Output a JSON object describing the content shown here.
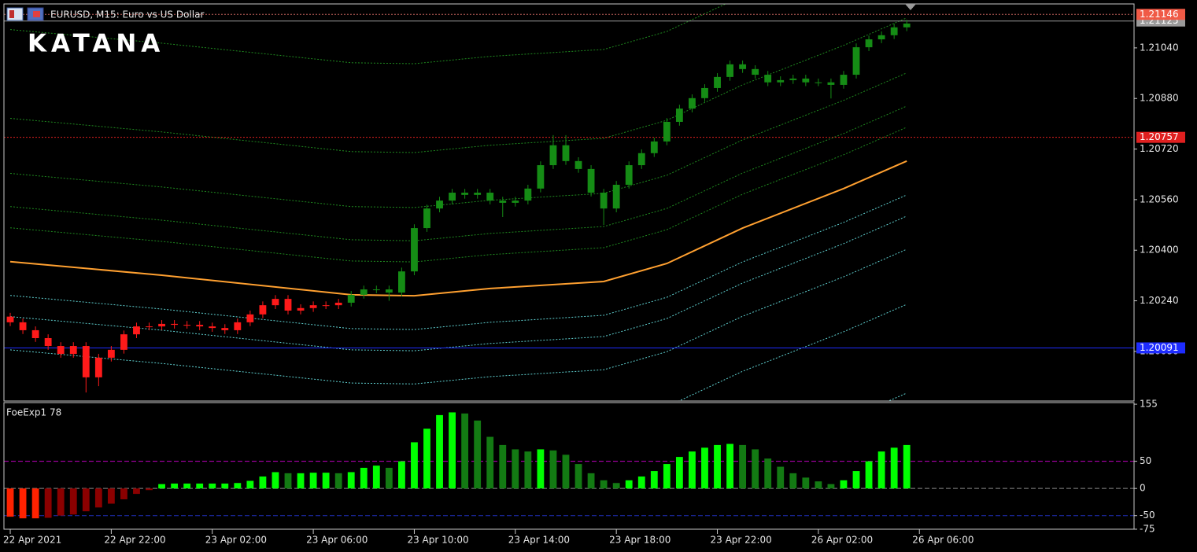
{
  "window": {
    "title": "EURUSD, M15:  Euro vs US Dollar",
    "watermark": "KATANA"
  },
  "chart_data": [
    {
      "type": "candlestick",
      "open": [
        1.2019,
        1.20172,
        1.20147,
        1.20122,
        1.20097,
        1.20072,
        1.20097,
        1.19998,
        1.2006,
        1.20085,
        1.20134,
        1.20159,
        1.20159,
        1.20167,
        1.20164,
        1.20164,
        1.20159,
        1.20154,
        1.20147,
        1.20172,
        1.20197,
        1.20226,
        1.20246,
        1.20209,
        1.20217,
        1.20226,
        1.20226,
        1.20234,
        1.20259,
        1.20276,
        1.20276,
        1.20266,
        1.20333,
        1.2047,
        1.20532,
        1.20557,
        1.20582,
        1.20575,
        1.20582,
        1.20557,
        1.2055,
        1.20557,
        1.20595,
        1.20669,
        1.20732,
        1.20682,
        1.20657,
        1.20582,
        1.20532,
        1.20607,
        1.20669,
        1.20707,
        1.20744,
        1.20806,
        1.20848,
        1.20881,
        1.20913,
        1.20948,
        1.20988,
        1.20973,
        1.20955,
        1.20931,
        1.20938,
        1.20943,
        1.20931,
        1.20931,
        1.20923,
        1.20955,
        1.21042,
        1.21067,
        1.2108,
        1.21105
      ],
      "high": [
        1.20202,
        1.20184,
        1.20159,
        1.20134,
        1.20109,
        1.20109,
        1.20109,
        1.20072,
        1.20097,
        1.20146,
        1.20171,
        1.20171,
        1.20179,
        1.20179,
        1.20176,
        1.20176,
        1.20171,
        1.20166,
        1.20184,
        1.20209,
        1.20238,
        1.20258,
        1.20258,
        1.20229,
        1.20238,
        1.20238,
        1.20246,
        1.20271,
        1.20288,
        1.20288,
        1.20288,
        1.20345,
        1.20482,
        1.20544,
        1.20569,
        1.20594,
        1.20594,
        1.20594,
        1.20594,
        1.20569,
        1.20569,
        1.20607,
        1.20681,
        1.20764,
        1.20764,
        1.20694,
        1.20669,
        1.20594,
        1.20619,
        1.20681,
        1.20719,
        1.20756,
        1.20818,
        1.2086,
        1.20893,
        1.20925,
        1.2096,
        1.21,
        1.21,
        1.20985,
        1.20967,
        1.2095,
        1.20955,
        1.20955,
        1.20943,
        1.20943,
        1.20967,
        1.21054,
        1.21079,
        1.21092,
        1.21117,
        1.21129
      ],
      "low": [
        1.2016,
        1.20135,
        1.2011,
        1.20085,
        1.2006,
        1.2006,
        1.1995,
        1.1997,
        1.20048,
        1.20073,
        1.20122,
        1.20147,
        1.20147,
        1.20152,
        1.20152,
        1.20147,
        1.20142,
        1.20135,
        1.20135,
        1.2016,
        1.20185,
        1.20214,
        1.20197,
        1.20197,
        1.20205,
        1.20214,
        1.20214,
        1.20222,
        1.20247,
        1.20264,
        1.2024,
        1.20254,
        1.20321,
        1.20458,
        1.2052,
        1.20545,
        1.20563,
        1.20563,
        1.20545,
        1.20505,
        1.20538,
        1.20545,
        1.20583,
        1.20657,
        1.2067,
        1.20645,
        1.2057,
        1.2048,
        1.2052,
        1.20595,
        1.20657,
        1.20695,
        1.20732,
        1.20794,
        1.20836,
        1.20869,
        1.20901,
        1.20936,
        1.20961,
        1.20943,
        1.20919,
        1.20919,
        1.20926,
        1.20919,
        1.20919,
        1.2088,
        1.20911,
        1.20943,
        1.2103,
        1.21055,
        1.21068,
        1.21093
      ],
      "close": [
        1.20172,
        1.20147,
        1.20122,
        1.20097,
        1.20072,
        1.20097,
        1.19998,
        1.2006,
        1.20085,
        1.20134,
        1.20159,
        1.20159,
        1.20167,
        1.20164,
        1.20164,
        1.20159,
        1.20154,
        1.20147,
        1.20172,
        1.20197,
        1.20226,
        1.20246,
        1.20209,
        1.20217,
        1.20226,
        1.20226,
        1.20234,
        1.20259,
        1.20276,
        1.20276,
        1.20266,
        1.20333,
        1.2047,
        1.20532,
        1.20557,
        1.20582,
        1.20575,
        1.20582,
        1.20557,
        1.2055,
        1.20557,
        1.20595,
        1.20669,
        1.20732,
        1.20682,
        1.20657,
        1.20582,
        1.20532,
        1.20607,
        1.20669,
        1.20707,
        1.20744,
        1.20806,
        1.20848,
        1.20881,
        1.20913,
        1.20948,
        1.20988,
        1.20973,
        1.20955,
        1.20931,
        1.20938,
        1.20943,
        1.20931,
        1.20931,
        1.20923,
        1.20955,
        1.21042,
        1.21067,
        1.2108,
        1.21105,
        1.21117
      ],
      "candle_colors": [
        "#ff1a1a",
        "#ff1a1a",
        "#ff1a1a",
        "#ff1a1a",
        "#ff1a1a",
        "#ff1a1a",
        "#ff1a1a",
        "#ff1a1a",
        "#ff1a1a",
        "#ff1a1a",
        "#ff1a1a",
        "#ff1a1a",
        "#ff1a1a",
        "#ff1a1a",
        "#ff1a1a",
        "#ff1a1a",
        "#ff1a1a",
        "#ff1a1a",
        "#ff1a1a",
        "#ff1a1a",
        "#ff1a1a",
        "#ff1a1a",
        "#ff1a1a",
        "#ff1a1a",
        "#ff1a1a",
        "#ff1a1a",
        "#ff1a1a",
        "#158c15",
        "#158c15",
        "#158c15",
        "#158c15",
        "#158c15",
        "#158c15",
        "#158c15",
        "#158c15",
        "#158c15",
        "#158c15",
        "#158c15",
        "#158c15",
        "#158c15",
        "#158c15",
        "#158c15",
        "#158c15",
        "#158c15",
        "#158c15",
        "#158c15",
        "#158c15",
        "#158c15",
        "#158c15",
        "#158c15",
        "#158c15",
        "#158c15",
        "#158c15",
        "#158c15",
        "#158c15",
        "#158c15",
        "#158c15",
        "#158c15",
        "#158c15",
        "#158c15",
        "#158c15",
        "#158c15",
        "#158c15",
        "#158c15",
        "#158c15",
        "#158c15",
        "#158c15",
        "#158c15",
        "#158c15",
        "#158c15",
        "#158c15",
        "#158c15"
      ],
      "xlim": [
        -0.5,
        89
      ],
      "xticks": [
        {
          "value": 0,
          "label": "22 Apr 2021"
        },
        {
          "value": 8,
          "label": "22 Apr 22:00"
        },
        {
          "value": 16,
          "label": "23 Apr 02:00"
        },
        {
          "value": 24,
          "label": "23 Apr 06:00"
        },
        {
          "value": 32,
          "label": "23 Apr 10:00"
        },
        {
          "value": 40,
          "label": "23 Apr 14:00"
        },
        {
          "value": 48,
          "label": "23 Apr 18:00"
        },
        {
          "value": 56,
          "label": "23 Apr 22:00"
        },
        {
          "value": 64,
          "label": "26 Apr 02:00"
        },
        {
          "value": 72,
          "label": "26 Apr 06:00"
        }
      ],
      "ylim": [
        1.19923,
        1.21179
      ],
      "yticks": [
        {
          "value": 1.2008,
          "label": "1.20080"
        },
        {
          "value": 1.2024,
          "label": "1.20240"
        },
        {
          "value": 1.204,
          "label": "1.20400"
        },
        {
          "value": 1.2056,
          "label": "1.20560"
        },
        {
          "value": 1.2072,
          "label": "1.20720"
        },
        {
          "value": 1.2088,
          "label": "1.20880"
        },
        {
          "value": 1.2104,
          "label": "1.21040"
        }
      ],
      "overlay_x": [
        0,
        12,
        27,
        32,
        38,
        47,
        52,
        58,
        66,
        71
      ],
      "overlays": [
        {
          "color": "#ffa030",
          "dash": "solid",
          "values": [
            1.20364,
            1.20321,
            1.20259,
            1.20256,
            1.20279,
            1.20301,
            1.20358,
            1.2047,
            1.20595,
            1.20682
          ]
        },
        {
          "color": "#1f8a1f",
          "dash": "dotted",
          "values": [
            1.20471,
            1.20428,
            1.20366,
            1.20363,
            1.20386,
            1.20408,
            1.20465,
            1.20577,
            1.20702,
            1.20789
          ]
        },
        {
          "color": "#1f8a1f",
          "dash": "dotted",
          "values": [
            1.20538,
            1.20495,
            1.20433,
            1.2043,
            1.20453,
            1.20475,
            1.20532,
            1.20644,
            1.20769,
            1.20856
          ]
        },
        {
          "color": "#1f8a1f",
          "dash": "dotted",
          "values": [
            1.20643,
            1.206,
            1.20538,
            1.20535,
            1.20558,
            1.2058,
            1.20637,
            1.20749,
            1.20874,
            1.20961
          ]
        },
        {
          "color": "#1f8a1f",
          "dash": "dotted",
          "values": [
            1.20817,
            1.20774,
            1.20712,
            1.20709,
            1.20732,
            1.20754,
            1.20811,
            1.20923,
            1.21048,
            1.21135
          ]
        },
        {
          "color": "#1f8a1f",
          "dash": "dotted",
          "values": [
            1.21098,
            1.21055,
            1.20993,
            1.2099,
            1.21013,
            1.21035,
            1.21092,
            1.21204,
            1.21329,
            1.21416
          ]
        },
        {
          "color": "#5fd0d0",
          "dash": "dotted",
          "values": [
            1.20257,
            1.20214,
            1.20152,
            1.20149,
            1.20172,
            1.20194,
            1.20251,
            1.20363,
            1.20488,
            1.20575
          ]
        },
        {
          "color": "#5fd0d0",
          "dash": "dotted",
          "values": [
            1.2019,
            1.20147,
            1.20085,
            1.20082,
            1.20105,
            1.20127,
            1.20184,
            1.20296,
            1.20421,
            1.20508
          ]
        },
        {
          "color": "#5fd0d0",
          "dash": "dotted",
          "values": [
            1.20085,
            1.20042,
            1.1998,
            1.19977,
            1.2,
            1.20022,
            1.20079,
            1.20191,
            1.20316,
            1.20403
          ]
        },
        {
          "color": "#5fd0d0",
          "dash": "dotted",
          "values": [
            1.19911,
            1.19868,
            1.19806,
            1.19803,
            1.19826,
            1.19848,
            1.19905,
            1.20017,
            1.20142,
            1.20229
          ]
        },
        {
          "color": "#5fd0d0",
          "dash": "dotted",
          "values": [
            1.1963,
            1.19587,
            1.19525,
            1.19522,
            1.19545,
            1.19567,
            1.19624,
            1.19736,
            1.19861,
            1.19948
          ]
        }
      ],
      "price_lines": [
        {
          "value": 1.21125,
          "color": "#9a9a9a",
          "dash": "solid",
          "label_bg": "#9a9a9a"
        },
        {
          "value": 1.21146,
          "color": "#c0605a",
          "dash": "dotted",
          "label_bg": "#f05a46"
        },
        {
          "value": 1.20757,
          "color": "#e02020",
          "dash": "dotted",
          "label_bg": "#e02020"
        },
        {
          "value": 1.20091,
          "color": "#1e2cff",
          "dash": "solid",
          "label_bg": "#1e2cff"
        }
      ]
    },
    {
      "type": "histogram",
      "title": "FoeExp1 78",
      "values": [
        -52,
        -55,
        -55,
        -54,
        -50,
        -48,
        -42,
        -35,
        -28,
        -20,
        -10,
        -3,
        8,
        9,
        9,
        9,
        9,
        9,
        10,
        14,
        22,
        30,
        28,
        28,
        29,
        29,
        28,
        30,
        38,
        42,
        38,
        50,
        85,
        110,
        135,
        140,
        138,
        125,
        95,
        80,
        72,
        68,
        72,
        70,
        62,
        45,
        28,
        15,
        10,
        15,
        22,
        32,
        45,
        58,
        68,
        75,
        80,
        82,
        80,
        72,
        55,
        40,
        28,
        20,
        13,
        8,
        15,
        32,
        50,
        68,
        75,
        80
      ],
      "palette": {
        "rising_positive": "#00ff00",
        "falling_positive": "#137a13",
        "falling_negative": "#ff2200",
        "rising_negative": "#8b0000"
      },
      "xlim": [
        -0.5,
        89
      ],
      "ylim": [
        -75,
        158
      ],
      "yticks": [
        155,
        50,
        0,
        -50,
        -75
      ],
      "levels": [
        {
          "value": 50,
          "color": "#c000c0"
        },
        {
          "value": 0,
          "color": "#8a8a8a"
        },
        {
          "value": -50,
          "color": "#2030c0"
        }
      ]
    }
  ]
}
